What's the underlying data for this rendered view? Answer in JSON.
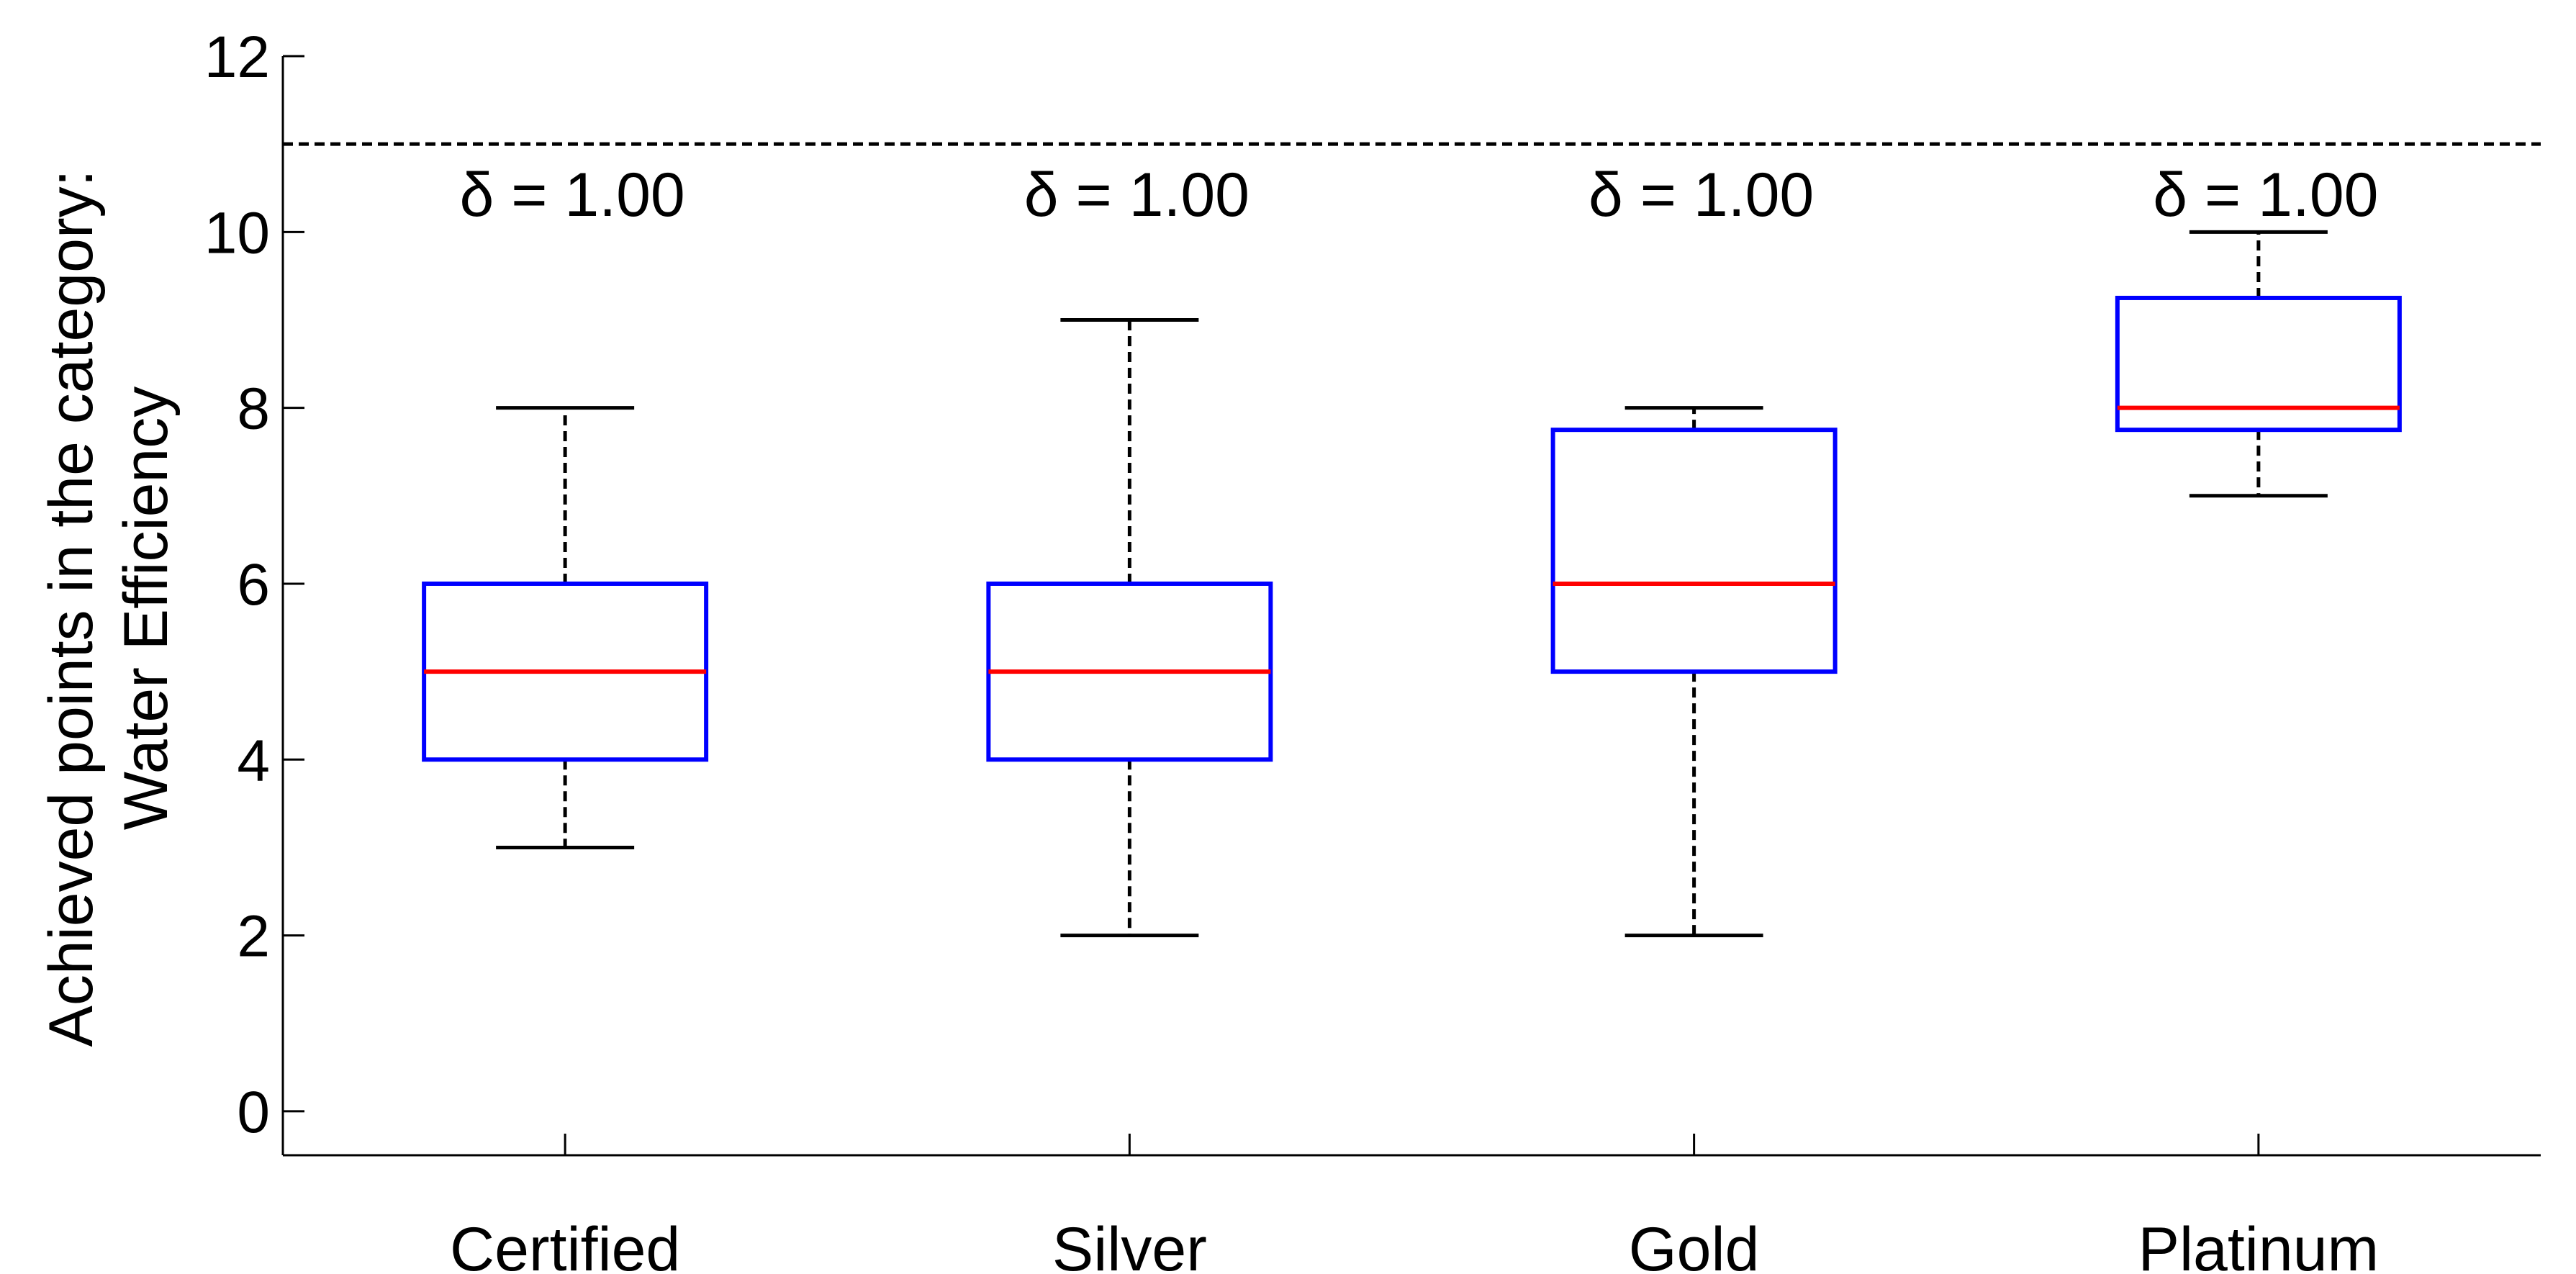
{
  "chart_data": {
    "type": "box",
    "categories": [
      "Certified",
      "Silver",
      "Gold",
      "Platinum"
    ],
    "boxes": [
      {
        "category": "Certified",
        "whisker_low": 3,
        "q1": 4,
        "median": 5,
        "q3": 6,
        "whisker_high": 8
      },
      {
        "category": "Silver",
        "whisker_low": 2,
        "q1": 4,
        "median": 5,
        "q3": 6,
        "whisker_high": 9
      },
      {
        "category": "Gold",
        "whisker_low": 2,
        "q1": 5,
        "median": 6,
        "q3": 7.75,
        "whisker_high": 8
      },
      {
        "category": "Platinum",
        "whisker_low": 7,
        "q1": 7.75,
        "median": 8,
        "q3": 9.25,
        "whisker_high": 10
      }
    ],
    "annotations": [
      "δ = 1.00",
      "δ = 1.00",
      "δ = 1.00",
      "δ = 1.00"
    ],
    "reference_line": {
      "y": 11,
      "style": "dashed",
      "color": "#000000"
    },
    "title": "",
    "xlabel": "",
    "ylabel": [
      "Achieved points in the category:",
      "Water Efficiency"
    ],
    "ylim": [
      -0.5,
      12
    ],
    "yticks": [
      0,
      2,
      4,
      6,
      8,
      10,
      12
    ],
    "ytick_labels": [
      "0",
      "2",
      "4",
      "6",
      "8",
      "10",
      "12"
    ],
    "grid": false,
    "legend": "none",
    "colors": {
      "box": "#0000ff",
      "median": "#ff0000",
      "whisker": "#000000",
      "axis": "#000000"
    }
  }
}
